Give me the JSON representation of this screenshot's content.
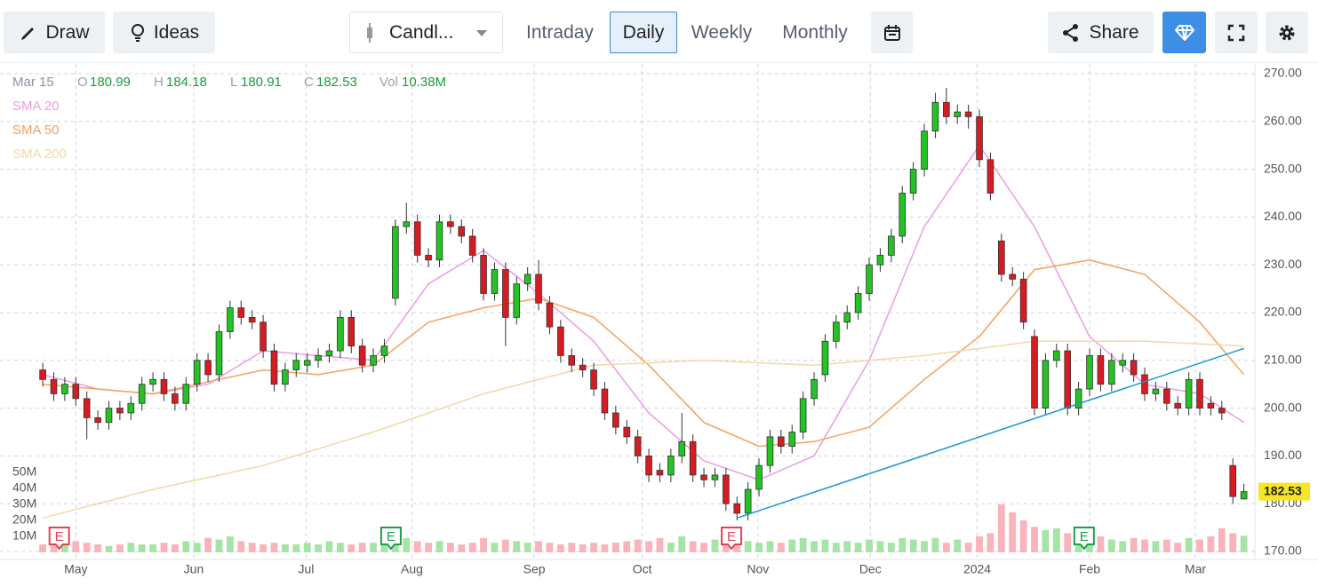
{
  "toolbar": {
    "draw": "Draw",
    "ideas": "Ideas",
    "chart_style": "Candl...",
    "intervals": [
      "Intraday",
      "Daily",
      "Weekly",
      "Monthly"
    ],
    "active_interval": "Daily",
    "share": "Share"
  },
  "chart_data": {
    "type": "candlestick",
    "legend": {
      "date": "Mar 15",
      "open_label": "O",
      "high_label": "H",
      "low_label": "L",
      "close_label": "C",
      "volume_label": "Vol",
      "volume": {
        "value": 10.38,
        "label": "10.38M"
      }
    },
    "colors": {
      "up": "#22c322",
      "down": "#d61c22",
      "up_volume": "#a6e3a6",
      "down_volume": "#f8b4ba"
    },
    "xlim": [
      -0.25,
      110
    ],
    "xticks": [
      {
        "value": 3,
        "label": "May"
      },
      {
        "value": 13.7,
        "label": "Jun"
      },
      {
        "value": 23.9,
        "label": "Jul"
      },
      {
        "value": 33.5,
        "label": "Aug"
      },
      {
        "value": 44.6,
        "label": "Sep"
      },
      {
        "value": 54.4,
        "label": "Oct"
      },
      {
        "value": 64.9,
        "label": "Nov"
      },
      {
        "value": 75.1,
        "label": "Dec"
      },
      {
        "value": 84.8,
        "label": "2024"
      },
      {
        "value": 95,
        "label": "Feb"
      },
      {
        "value": 104.6,
        "label": "Mar"
      }
    ],
    "ylim": [
      170,
      270
    ],
    "yticks": [
      {
        "value": 170,
        "label": "170.00"
      },
      {
        "value": 180,
        "label": "180.00"
      },
      {
        "value": 190,
        "label": "190.00"
      },
      {
        "value": 200,
        "label": "200.00"
      },
      {
        "value": 210,
        "label": "210.00"
      },
      {
        "value": 220,
        "label": "220.00"
      },
      {
        "value": 230,
        "label": "230.00"
      },
      {
        "value": 240,
        "label": "240.00"
      },
      {
        "value": 250,
        "label": "250.00"
      },
      {
        "value": 260,
        "label": "260.00"
      },
      {
        "value": 270,
        "label": "270.00"
      }
    ],
    "volume_ylim": [
      0,
      50
    ],
    "volume_ticks": [
      {
        "value": 10,
        "label": "10M"
      },
      {
        "value": 20,
        "label": "20M"
      },
      {
        "value": 30,
        "label": "30M"
      },
      {
        "value": 40,
        "label": "40M"
      },
      {
        "value": 50,
        "label": "50M"
      }
    ],
    "grid": true,
    "open": [
      208,
      206,
      203,
      205,
      202,
      198,
      197,
      200,
      199,
      201,
      205,
      206,
      203,
      201,
      205,
      210,
      207,
      216,
      221,
      219,
      218,
      212,
      205,
      208,
      209,
      210,
      211,
      212,
      219,
      213,
      209,
      211,
      223,
      238,
      239,
      232,
      231,
      239,
      238,
      236,
      232,
      224,
      229,
      219,
      226,
      228,
      222,
      217,
      211,
      209,
      208,
      204,
      199,
      196,
      194,
      190,
      187,
      186,
      190,
      193,
      186,
      185,
      186,
      180,
      178,
      183,
      188,
      194,
      192,
      195,
      202,
      207,
      214,
      218,
      220,
      224,
      230,
      232,
      236,
      245,
      250,
      258,
      264,
      261,
      262,
      261,
      252,
      235,
      228,
      227,
      215,
      200,
      210,
      212,
      200,
      204,
      211,
      205,
      209,
      210,
      207,
      203,
      204,
      201,
      200,
      206,
      201,
      200,
      188,
      180.99
    ],
    "high": [
      209.5,
      207.5,
      206.5,
      206.5,
      203.5,
      199.5,
      201.5,
      201.5,
      202.5,
      206.5,
      207.5,
      207.5,
      204.5,
      206.5,
      211.5,
      211.5,
      217.5,
      222.5,
      222.5,
      220.5,
      219.5,
      213.5,
      209.5,
      211.5,
      211.5,
      212.5,
      213.5,
      220.5,
      220.5,
      214.5,
      212.5,
      214.5,
      239.5,
      243,
      240.5,
      233.5,
      240.5,
      240.5,
      239.5,
      237.5,
      233.5,
      230.5,
      230.5,
      227.5,
      229.5,
      231,
      223.5,
      218.5,
      212.5,
      210.5,
      209.5,
      205.5,
      200.5,
      197.5,
      195.5,
      191.5,
      188.5,
      191.5,
      199,
      194.5,
      187.5,
      187.5,
      187.5,
      181.5,
      184.5,
      189.5,
      195.5,
      195.5,
      196.5,
      203.5,
      207.5,
      215.5,
      219.5,
      221.5,
      225.5,
      231.5,
      233.5,
      237.5,
      246.5,
      251.5,
      259.5,
      266,
      267,
      263.5,
      263.5,
      262.5,
      253.5,
      236.5,
      229.5,
      228.5,
      216.5,
      211.5,
      213.5,
      213.5,
      205.5,
      212.5,
      212.5,
      211.5,
      211.5,
      211.5,
      208.5,
      205.5,
      205.5,
      202.5,
      207.5,
      207.5,
      202.5,
      201.5,
      189.5,
      184.18
    ],
    "low": [
      204.5,
      201.5,
      201.5,
      200.5,
      193.5,
      195.5,
      195.5,
      197.5,
      197.5,
      199.5,
      203.5,
      201.5,
      199.5,
      199.5,
      203.5,
      205.5,
      205.5,
      214.5,
      217.5,
      216.5,
      210.5,
      203.5,
      203.5,
      206.5,
      207.5,
      208.5,
      209.5,
      210.5,
      211.5,
      207.5,
      207.5,
      209.5,
      221.5,
      236.5,
      230.5,
      229.5,
      229.5,
      236.5,
      234.5,
      230.5,
      222.5,
      222.5,
      213,
      217.5,
      224.5,
      220.5,
      215.5,
      209.5,
      207.5,
      206.5,
      202.5,
      197.5,
      194.5,
      192.5,
      188.5,
      184.5,
      184.5,
      184.5,
      188.5,
      184.5,
      183.5,
      183.5,
      178.5,
      176.5,
      176.5,
      181.5,
      186.5,
      190.5,
      190.5,
      193.5,
      200.5,
      205.5,
      212.5,
      216.5,
      218.5,
      222.5,
      228.5,
      230.5,
      234.5,
      243.5,
      248.5,
      256.5,
      259.5,
      259.5,
      258.5,
      250.5,
      243.5,
      226.5,
      225.5,
      216.5,
      198.5,
      198.5,
      208.5,
      198.5,
      198.5,
      202.5,
      203.5,
      203.5,
      207.5,
      205.5,
      201.5,
      201.5,
      199.5,
      198.5,
      198.5,
      198.5,
      198.5,
      197.5,
      180,
      180.91
    ],
    "close": [
      206,
      203,
      205,
      202,
      198,
      197,
      200,
      199,
      201,
      205,
      206,
      203,
      201,
      205,
      210,
      207,
      216,
      221,
      219,
      218,
      212,
      205,
      208,
      210,
      210,
      211,
      212,
      219,
      213,
      209,
      211,
      213,
      238,
      239,
      232,
      231,
      239,
      238,
      236,
      232,
      224,
      229,
      219,
      226,
      228,
      222,
      217,
      211,
      209,
      208,
      204,
      199,
      196,
      194,
      190,
      186,
      186,
      190,
      193,
      186,
      185,
      186,
      180,
      178,
      183,
      188,
      194,
      192,
      195,
      202,
      206,
      214,
      218,
      220,
      224,
      230,
      232,
      236,
      245,
      250,
      258,
      264,
      261,
      262,
      261,
      252,
      245,
      228,
      227,
      218,
      200,
      210,
      212,
      200,
      204,
      211,
      205,
      210,
      210,
      207,
      203,
      204,
      201,
      200,
      206,
      200,
      200,
      199,
      181.5,
      182.53
    ],
    "volume": [
      5,
      6,
      5,
      7,
      6,
      5,
      4,
      5,
      6,
      5,
      5,
      6,
      5,
      7,
      6,
      9,
      8,
      10,
      7,
      6,
      5,
      6,
      5,
      5,
      6,
      5,
      7,
      6,
      5,
      6,
      6,
      8,
      15,
      9,
      7,
      6,
      7,
      6,
      5,
      6,
      9,
      6,
      8,
      7,
      6,
      7,
      6,
      5,
      6,
      5,
      6,
      5,
      6,
      7,
      8,
      7,
      9,
      6,
      10,
      7,
      6,
      8,
      12,
      10,
      7,
      6,
      7,
      6,
      8,
      9,
      7,
      8,
      6,
      7,
      6,
      8,
      7,
      6,
      9,
      8,
      7,
      9,
      6,
      8,
      6,
      10,
      12,
      30,
      25,
      20,
      16,
      14,
      15,
      12,
      11,
      13,
      10,
      8,
      7,
      9,
      8,
      7,
      8,
      6,
      9,
      8,
      10,
      15,
      12,
      10.38
    ],
    "indicators": [
      {
        "name": "SMA 20",
        "color": "#eb9de1",
        "x": [
          0,
          5,
          10,
          15,
          20,
          25,
          30,
          35,
          40,
          45,
          50,
          55,
          60,
          65,
          70,
          75,
          80,
          85,
          90,
          95,
          100,
          105,
          109
        ],
        "values": [
          207,
          204,
          203,
          205,
          212,
          211,
          210,
          226,
          233,
          224,
          214,
          199,
          189,
          185,
          190,
          210,
          238,
          255,
          238,
          215,
          205,
          203,
          197
        ]
      },
      {
        "name": "SMA 50",
        "color": "#f6a15c",
        "x": [
          0,
          10,
          20,
          25,
          30,
          35,
          40,
          45,
          50,
          55,
          60,
          65,
          70,
          75,
          80,
          85,
          90,
          95,
          100,
          105,
          109
        ],
        "values": [
          205,
          203,
          208,
          207,
          209,
          218,
          221,
          223,
          219,
          209,
          197,
          192,
          193,
          196,
          206,
          215,
          229,
          231,
          228,
          218,
          207
        ]
      },
      {
        "name": "SMA 200",
        "color": "#f1d9a6",
        "x": [
          0,
          10,
          20,
          30,
          40,
          50,
          60,
          70,
          80,
          90,
          100,
          109
        ],
        "values": [
          177,
          183,
          188,
          195,
          203,
          209,
          210,
          209,
          211,
          214,
          214,
          213
        ]
      }
    ],
    "trendline": {
      "color": "#1b95d4",
      "x": [
        63,
        109
      ],
      "values": [
        177,
        212.5
      ]
    },
    "events": [
      {
        "x": 1.5,
        "label": "E",
        "color": "#e0454f"
      },
      {
        "x": 31.6,
        "label": "E",
        "color": "#1e9e4a"
      },
      {
        "x": 62.5,
        "label": "E",
        "color": "#e0454f"
      },
      {
        "x": 94.5,
        "label": "E",
        "color": "#1e9e4a"
      }
    ]
  }
}
